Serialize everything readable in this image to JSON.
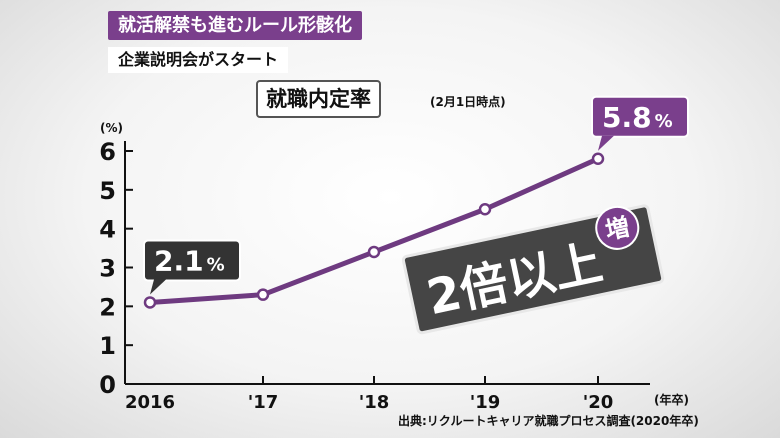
{
  "captions": {
    "headline": "就活解禁も進むルール形骸化",
    "subline": "企業説明会がスタート"
  },
  "chart_data": {
    "type": "line",
    "title": "就職内定率",
    "subtitle": "(2月1日時点)",
    "ylabel": "(%)",
    "xlabel": "(年卒)",
    "categories": [
      "2016",
      "'17",
      "'18",
      "'19",
      "'20"
    ],
    "values": [
      2.1,
      2.3,
      3.4,
      4.5,
      5.8
    ],
    "ylim": [
      0,
      6
    ],
    "yticks": [
      "0",
      "1",
      "2",
      "3",
      "4",
      "5",
      "6"
    ],
    "series": [
      {
        "values": [
          2.1,
          2.3,
          3.4,
          4.5,
          5.8
        ]
      }
    ],
    "callouts": [
      {
        "index": 0,
        "number": "2.1",
        "unit": "%",
        "style": "dark"
      },
      {
        "index": 4,
        "number": "5.8",
        "unit": "%",
        "style": "purple"
      }
    ],
    "annotation": {
      "text": "2倍以上",
      "badge": "増"
    },
    "source": "出典:リクルートキャリア就職プロセス調査(2020年卒)",
    "grid": false,
    "colors": {
      "line": "#6e3a80",
      "dark_box": "#333333",
      "purple_box": "#7a3f8c",
      "annotation_box": "#454545"
    }
  }
}
